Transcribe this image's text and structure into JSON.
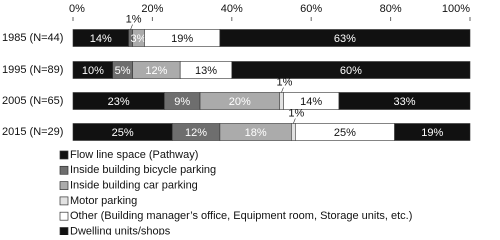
{
  "chart_data": {
    "type": "stacked_barh",
    "categories": [
      "1985 (N=44)",
      "1995 (N=89)",
      "2005 (N=65)",
      "2015 (N=29)"
    ],
    "xlim": [
      0,
      100
    ],
    "xticks": [
      {
        "value": 0,
        "label": "0%"
      },
      {
        "value": 20,
        "label": "20%"
      },
      {
        "value": 40,
        "label": "40%"
      },
      {
        "value": 60,
        "label": "60%"
      },
      {
        "value": 80,
        "label": "80%"
      },
      {
        "value": 100,
        "label": "100%"
      }
    ],
    "series": [
      {
        "name": "Flow line space (Pathway)",
        "color": "#111111",
        "values": [
          14,
          10,
          23,
          25
        ],
        "value_labels": [
          "14%",
          "10%",
          "23%",
          "25%"
        ]
      },
      {
        "name": "Inside building bicycle parking",
        "color": "#6e6e6e",
        "values": [
          1,
          5,
          9,
          12
        ],
        "value_labels": [
          "1%",
          "5%",
          "9%",
          "12%"
        ]
      },
      {
        "name": "Inside building car parking",
        "color": "#ababab",
        "values": [
          3,
          12,
          20,
          18
        ],
        "value_labels": [
          "3%",
          "12%",
          "20%",
          "18%"
        ]
      },
      {
        "name": "Motor parking",
        "color": "#e2e2e2",
        "values": [
          0,
          0,
          1,
          1
        ],
        "value_labels": [
          null,
          null,
          "1%",
          "1%"
        ]
      },
      {
        "name": "Other (Building manager’s office, Equipment room, Storage units, etc.)",
        "color": "#ffffff",
        "values": [
          19,
          13,
          14,
          25
        ],
        "value_labels": [
          "19%",
          "13%",
          "14%",
          "25%"
        ]
      },
      {
        "name": "Dwelling units/shops",
        "color": "#111111",
        "values": [
          63,
          60,
          33,
          19
        ],
        "value_labels": [
          "63%",
          "60%",
          "33%",
          "19%"
        ]
      }
    ]
  }
}
